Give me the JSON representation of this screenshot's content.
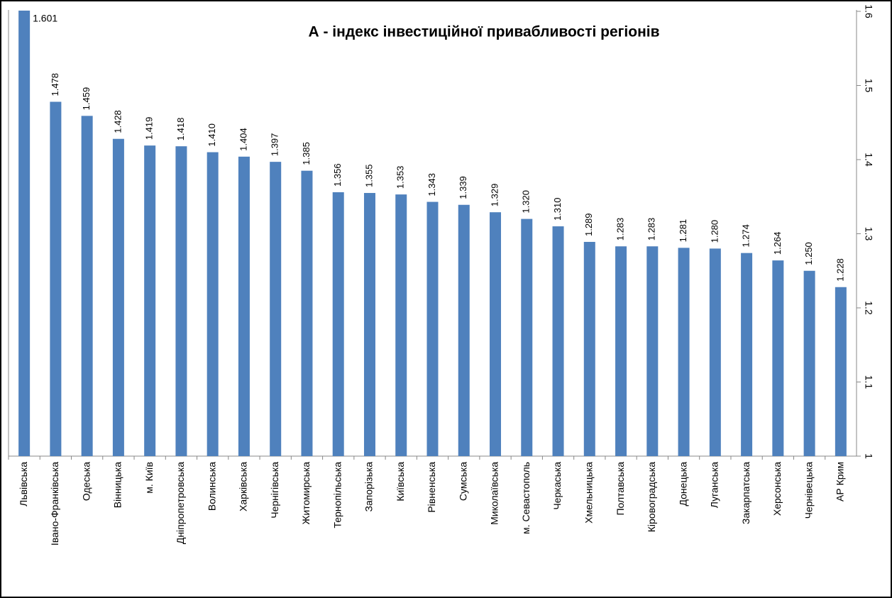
{
  "chart_data": {
    "type": "bar",
    "title": "А - індекс інвестиційної привабливості регіонів",
    "categories": [
      "Львівська",
      "Івано-Франківська",
      "Одеська",
      "Вінницька",
      "м. Київ",
      "Дніпропетровська",
      "Волинська",
      "Харківська",
      "Чернігівська",
      "Житомирська",
      "Тернопільська",
      "Запорізька",
      "Київська",
      "Рівненська",
      "Сумська",
      "Миколаївська",
      "м. Севастополь",
      "Черкаська",
      "Хмельницька",
      "Полтавська",
      "Кіровоградська",
      "Донецька",
      "Луганська",
      "Закарпатська",
      "Херсонська",
      "Чернівецька",
      "АР Крим"
    ],
    "values": [
      1.601,
      1.478,
      1.459,
      1.428,
      1.419,
      1.418,
      1.41,
      1.404,
      1.397,
      1.385,
      1.356,
      1.355,
      1.353,
      1.343,
      1.339,
      1.329,
      1.32,
      1.31,
      1.289,
      1.283,
      1.283,
      1.281,
      1.28,
      1.274,
      1.264,
      1.25,
      1.228
    ],
    "value_labels": [
      "1.601",
      "1.478",
      "1.459",
      "1.428",
      "1.419",
      "1.418",
      "1.410",
      "1.404",
      "1.397",
      "1.385",
      "1.356",
      "1.355",
      "1.353",
      "1.343",
      "1.339",
      "1.329",
      "1.320",
      "1.310",
      "1.289",
      "1.283",
      "1.283",
      "1.281",
      "1.280",
      "1.274",
      "1.264",
      "1.250",
      "1.228"
    ],
    "color": "#4f81bd",
    "ylim": [
      1,
      1.6
    ],
    "yticks": [
      1,
      1.1,
      1.2,
      1.3,
      1.4,
      1.5,
      1.6
    ]
  }
}
